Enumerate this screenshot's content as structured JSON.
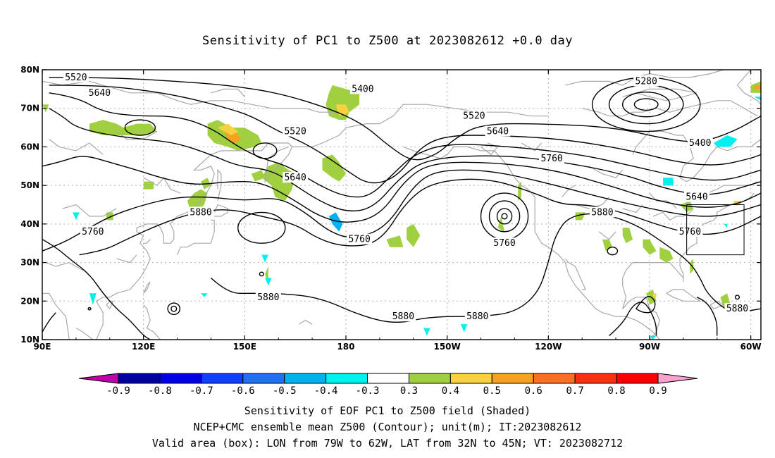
{
  "title": "Sensitivity of PC1 to Z500 at 2023082612 +0.0 day",
  "footer": {
    "line1": "Sensitivity of EOF PC1 to Z500 field (Shaded)",
    "line2": "NCEP+CMC ensemble mean Z500 (Contour); unit(m); IT:2023082612",
    "line3": "Valid area (box): LON from 79W to 62W, LAT from 32N to 45N; VT: 2023082712"
  },
  "map": {
    "lon_range": [
      90,
      303
    ],
    "lat_range": [
      10,
      80
    ],
    "grid": true,
    "y_tick_labels": [
      "10N",
      "20N",
      "30N",
      "40N",
      "50N",
      "60N",
      "70N",
      "80N"
    ],
    "x_tick_labels": [
      "90E",
      "120E",
      "150E",
      "180",
      "150W",
      "120W",
      "90W",
      "60W"
    ],
    "valid_box": {
      "lon_from": "79W",
      "lon_to": "62W",
      "lat_from": "32N",
      "lat_to": "45N"
    },
    "contour_labels": [
      {
        "text": "5520",
        "lon": 100,
        "lat": 78
      },
      {
        "text": "5640",
        "lon": 107,
        "lat": 74
      },
      {
        "text": "5400",
        "lon": 185,
        "lat": 75
      },
      {
        "text": "5520",
        "lon": 165,
        "lat": 64
      },
      {
        "text": "5640",
        "lon": 165,
        "lat": 52
      },
      {
        "text": "5880",
        "lon": 137,
        "lat": 43
      },
      {
        "text": "5760",
        "lon": 105,
        "lat": 38
      },
      {
        "text": "5760",
        "lon": 184,
        "lat": 36
      },
      {
        "text": "5880",
        "lon": 157,
        "lat": 21
      },
      {
        "text": "5880",
        "lon": 197,
        "lat": 16
      },
      {
        "text": "5880",
        "lon": 219,
        "lat": 16
      },
      {
        "text": "5520",
        "lon": 218,
        "lat": 68
      },
      {
        "text": "5640",
        "lon": 225,
        "lat": 64
      },
      {
        "text": "5760",
        "lon": 241,
        "lat": 57
      },
      {
        "text": "5280",
        "lon": 269,
        "lat": 77
      },
      {
        "text": "5400",
        "lon": 285,
        "lat": 61
      },
      {
        "text": "5640",
        "lon": 284,
        "lat": 47
      },
      {
        "text": "5760",
        "lon": 282,
        "lat": 38
      },
      {
        "text": "5880",
        "lon": 256,
        "lat": 43
      },
      {
        "text": "5760",
        "lon": 227,
        "lat": 35
      },
      {
        "text": "5880",
        "lon": 296,
        "lat": 18
      }
    ]
  },
  "colorbar": {
    "labels": [
      "-0.9",
      "-0.8",
      "-0.7",
      "-0.6",
      "-0.5",
      "-0.4",
      "-0.3",
      "0.3",
      "0.4",
      "0.5",
      "0.6",
      "0.7",
      "0.8",
      "0.9"
    ],
    "left_tip_color": "#c000a8",
    "colors": [
      "#0000a0",
      "#0000e0",
      "#1040ff",
      "#2070f0",
      "#00b0f0",
      "#00f0f0",
      "#ffffff",
      "#a0d040",
      "#f8d040",
      "#f8a020",
      "#f87020",
      "#f83010",
      "#f80000"
    ],
    "right_tip_color": "#f8a0d0"
  }
}
